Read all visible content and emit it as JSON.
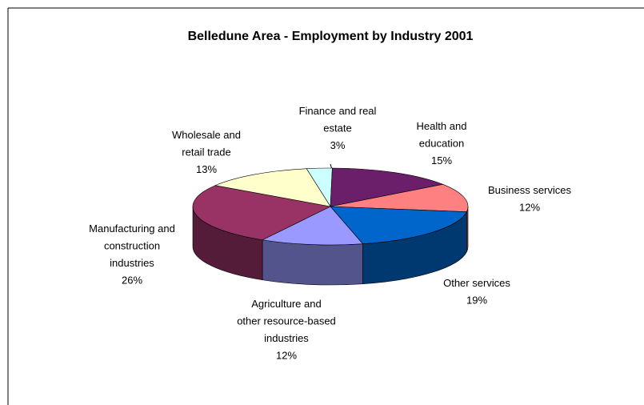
{
  "chart_data": {
    "type": "pie3d",
    "title": "Belledune Area - Employment by Industry 2001",
    "categories": [
      "Finance and real estate",
      "Health and education",
      "Business services",
      "Other services",
      "Agriculture and other resource-based industries",
      "Manufacturing and construction industries",
      "Wholesale and retail trade"
    ],
    "values": [
      3,
      15,
      12,
      19,
      12,
      26,
      13
    ],
    "value_labels": [
      "3%",
      "15%",
      "12%",
      "19%",
      "12%",
      "26%",
      "13%"
    ],
    "colors": [
      "#ccffff",
      "#6b1f6b",
      "#ff8080",
      "#0066cc",
      "#9999ff",
      "#993366",
      "#ffffcc"
    ]
  }
}
